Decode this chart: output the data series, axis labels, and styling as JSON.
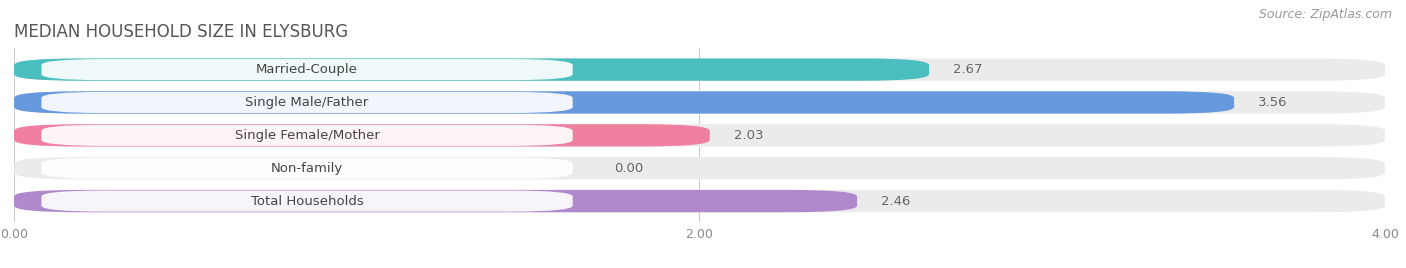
{
  "title": "MEDIAN HOUSEHOLD SIZE IN ELYSBURG",
  "source": "Source: ZipAtlas.com",
  "categories": [
    "Married-Couple",
    "Single Male/Father",
    "Single Female/Mother",
    "Non-family",
    "Total Households"
  ],
  "values": [
    2.67,
    3.56,
    2.03,
    0.0,
    2.46
  ],
  "bar_colors": [
    "#4bbfbf",
    "#6699dd",
    "#f080a0",
    "#f5c98a",
    "#b088cc"
  ],
  "background_color": "#ffffff",
  "bar_bg_color": "#ebebeb",
  "xlim": [
    0,
    4.0
  ],
  "xticks": [
    0.0,
    2.0,
    4.0
  ],
  "title_fontsize": 12,
  "label_fontsize": 9.5,
  "value_fontsize": 9.5,
  "source_fontsize": 9
}
